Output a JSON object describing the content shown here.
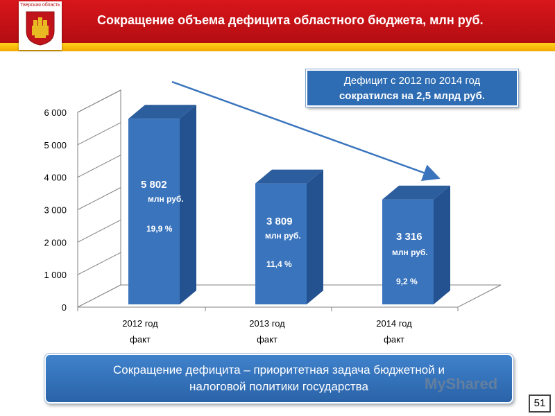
{
  "header": {
    "title": "Сокращение объема дефицита областного бюджета, млн руб.",
    "emblem_caption": "Тверская область",
    "colors": {
      "red": "#d8161b",
      "stripe": "#ffd21a"
    }
  },
  "callout": {
    "line1": "Дефицит с 2012 по 2014 год",
    "line2": "сократился на 2,5 млрд руб."
  },
  "chart_data": {
    "type": "bar",
    "style": "3d-columns",
    "categories": [
      [
        "2012 год",
        "факт"
      ],
      [
        "2013 год",
        "факт"
      ],
      [
        "2014 год",
        "факт"
      ]
    ],
    "values": [
      5802,
      3809,
      3316
    ],
    "value_labels": [
      "5 802",
      "3 809",
      "3 316"
    ],
    "unit_labels": [
      "млн руб.",
      "млн руб.",
      "млн руб."
    ],
    "percent_labels": [
      "19,9 %",
      "11,4 %",
      "9,2 %"
    ],
    "y_ticks": [
      0,
      1000,
      2000,
      3000,
      4000,
      5000,
      6000
    ],
    "y_tick_labels": [
      "0",
      "1 000",
      "2 000",
      "3 000",
      "4 000",
      "5 000",
      "6 000"
    ],
    "ylim": [
      0,
      6000
    ],
    "grid": true,
    "bar_color": "#3a74bd",
    "trend_arrow": true
  },
  "footer": {
    "statement_line1": "Сокращение дефицита – приоритетная задача бюджетной и",
    "statement_line2": "налоговой политики государства",
    "watermark": "MyShared",
    "page_number": "51"
  }
}
